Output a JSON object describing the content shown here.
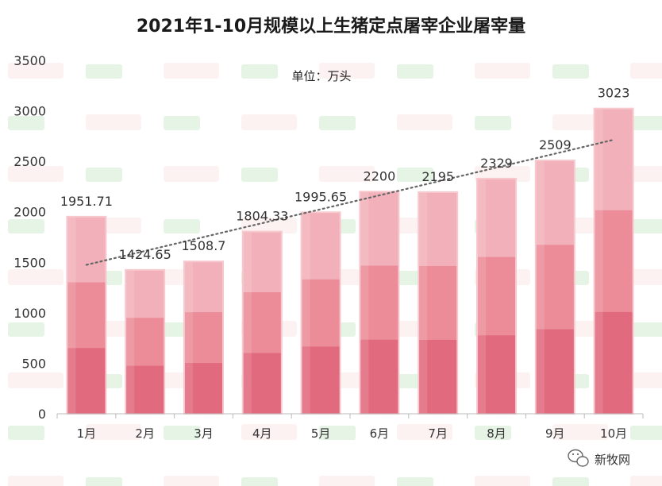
{
  "chart_data": {
    "type": "bar",
    "title": "2021年1-10月规模以上生猪定点屠宰企业屠宰量",
    "unit_label": "单位：万头",
    "categories": [
      "1月",
      "2月",
      "3月",
      "4月",
      "5月",
      "6月",
      "7月",
      "8月",
      "9月",
      "10月"
    ],
    "values": [
      1951.71,
      1424.65,
      1508.7,
      1804.33,
      1995.65,
      2200,
      2195,
      2329,
      2509,
      3023
    ],
    "value_labels": [
      "1951.71",
      "1424.65",
      "1508.7",
      "1804.33",
      "1995.65",
      "2200",
      "2195",
      "2329",
      "2509",
      "3023"
    ],
    "y_ticks": [
      0,
      500,
      1000,
      1500,
      2000,
      2500,
      3000,
      3500
    ],
    "ylim": [
      0,
      3500
    ],
    "trendline": "linear, dotted",
    "grid": false,
    "colors": {
      "bar_bottom": "#e26a7e",
      "bar_middle": "#eb8c98",
      "bar_top": "#f2b1ba",
      "bar_edge": "#f7c9cf",
      "trendline": "#666666"
    }
  },
  "credit": {
    "icon": "wechat-icon",
    "text": "新牧网"
  }
}
